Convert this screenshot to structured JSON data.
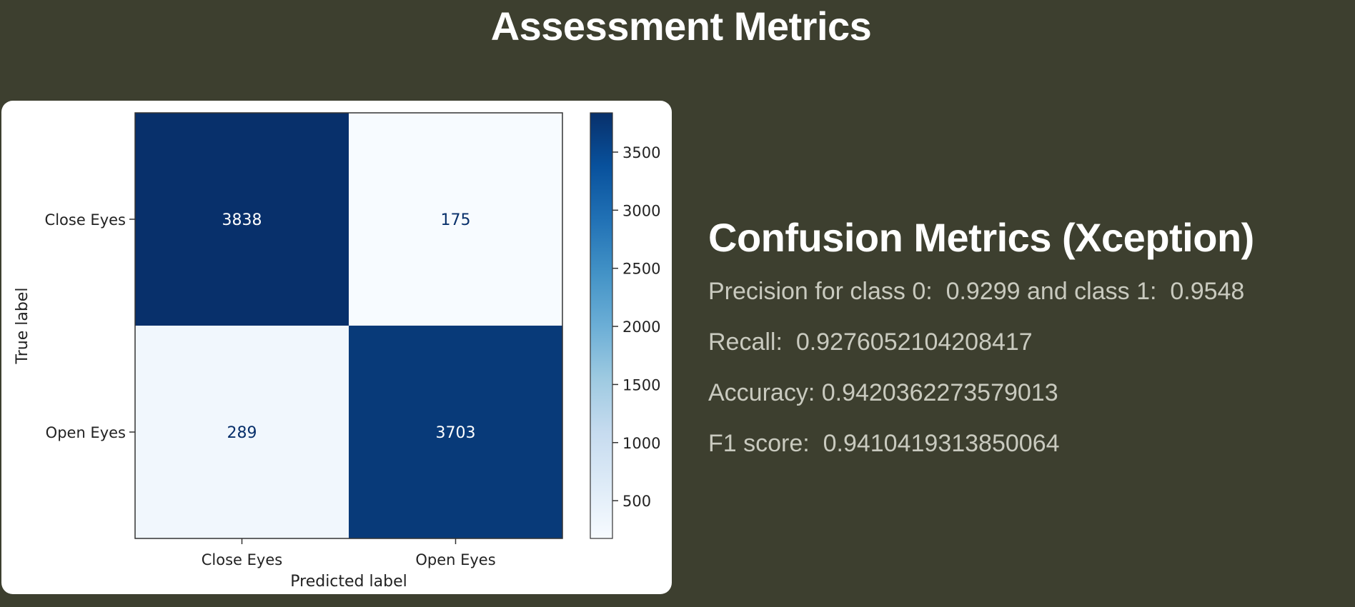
{
  "page": {
    "title": "Assessment Metrics"
  },
  "chart_data": {
    "type": "heatmap",
    "title": "",
    "xlabel": "Predicted label",
    "ylabel": "True label",
    "x_categories": [
      "Close Eyes",
      "Open Eyes"
    ],
    "y_categories": [
      "Close Eyes",
      "Open Eyes"
    ],
    "values": [
      [
        3838,
        175
      ],
      [
        289,
        3703
      ]
    ],
    "colorbar": {
      "range": [
        175,
        3838
      ],
      "ticks": [
        500,
        1000,
        1500,
        2000,
        2500,
        3000,
        3500
      ],
      "colormap": "Blues"
    }
  },
  "metrics": {
    "title": "Confusion Metrics (Xception)",
    "lines": [
      "Precision for class 0:  0.9299 and class 1:  0.9548",
      "Recall:  0.9276052104208417",
      "Accuracy: 0.9420362273579013",
      "F1 score:  0.9410419313850064"
    ]
  }
}
